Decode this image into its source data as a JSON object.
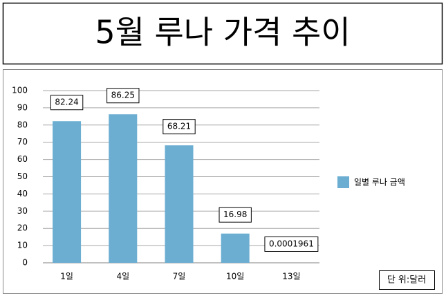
{
  "chart_data": {
    "type": "bar",
    "title": "5월 루나 가격 추이",
    "categories": [
      "1일",
      "4일",
      "7일",
      "10일",
      "13일"
    ],
    "series": [
      {
        "name": "일별 루나 금액",
        "color": "#6baed2",
        "values": [
          82.24,
          86.25,
          68.21,
          16.98,
          0.0001961
        ]
      }
    ],
    "ylim": [
      0,
      100
    ],
    "yticks": [
      0,
      10,
      20,
      30,
      40,
      50,
      60,
      70,
      80,
      90,
      100
    ],
    "grid": true,
    "legend": "right",
    "unit_note": "단 위:달러"
  }
}
